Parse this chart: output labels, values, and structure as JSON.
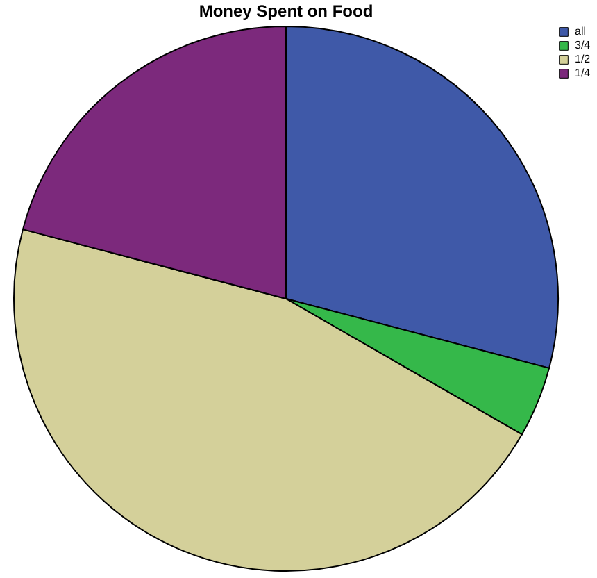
{
  "chart_data": {
    "type": "pie",
    "title": "Money Spent on Food",
    "categories": [
      "all",
      "3/4",
      "1/2",
      "1/4"
    ],
    "values": [
      29.1,
      4.2,
      45.8,
      20.9
    ],
    "colors": [
      "#3f59a8",
      "#35b84a",
      "#d4d09a",
      "#7c297c"
    ],
    "legend": "top right"
  }
}
